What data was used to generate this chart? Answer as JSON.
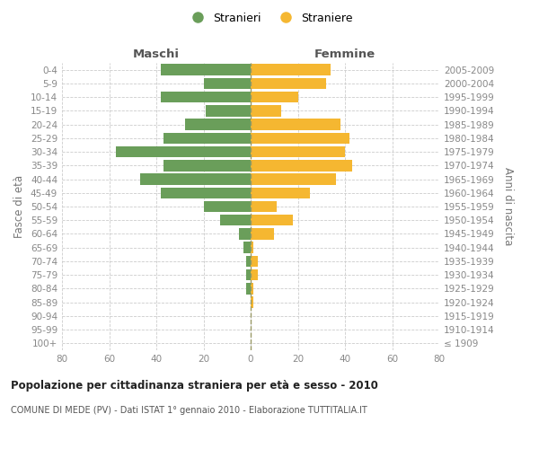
{
  "age_groups": [
    "100+",
    "95-99",
    "90-94",
    "85-89",
    "80-84",
    "75-79",
    "70-74",
    "65-69",
    "60-64",
    "55-59",
    "50-54",
    "45-49",
    "40-44",
    "35-39",
    "30-34",
    "25-29",
    "20-24",
    "15-19",
    "10-14",
    "5-9",
    "0-4"
  ],
  "birth_years": [
    "≤ 1909",
    "1910-1914",
    "1915-1919",
    "1920-1924",
    "1925-1929",
    "1930-1934",
    "1935-1939",
    "1940-1944",
    "1945-1949",
    "1950-1954",
    "1955-1959",
    "1960-1964",
    "1965-1969",
    "1970-1974",
    "1975-1979",
    "1980-1984",
    "1985-1989",
    "1990-1994",
    "1995-1999",
    "2000-2004",
    "2005-2009"
  ],
  "males": [
    0,
    0,
    0,
    0,
    2,
    2,
    2,
    3,
    5,
    13,
    20,
    38,
    47,
    37,
    57,
    37,
    28,
    19,
    38,
    20,
    38
  ],
  "females": [
    0,
    0,
    0,
    1,
    1,
    3,
    3,
    1,
    10,
    18,
    11,
    25,
    36,
    43,
    40,
    42,
    38,
    13,
    20,
    32,
    34
  ],
  "male_color": "#6a9e5a",
  "female_color": "#f5b731",
  "grid_color": "#cccccc",
  "vline_color": "#999966",
  "xlim": [
    -80,
    80
  ],
  "xticks": [
    -80,
    -60,
    -40,
    -20,
    0,
    20,
    40,
    60,
    80
  ],
  "xtick_labels": [
    "80",
    "60",
    "40",
    "20",
    "0",
    "20",
    "40",
    "60",
    "80"
  ],
  "title": "Popolazione per cittadinanza straniera per età e sesso - 2010",
  "subtitle": "COMUNE DI MEDE (PV) - Dati ISTAT 1° gennaio 2010 - Elaborazione TUTTITALIA.IT",
  "ylabel_left": "Fasce di età",
  "ylabel_right": "Anni di nascita",
  "maschi_label": "Maschi",
  "femmine_label": "Femmine",
  "legend_stranieri": "Stranieri",
  "legend_straniere": "Straniere",
  "bar_height": 0.82
}
